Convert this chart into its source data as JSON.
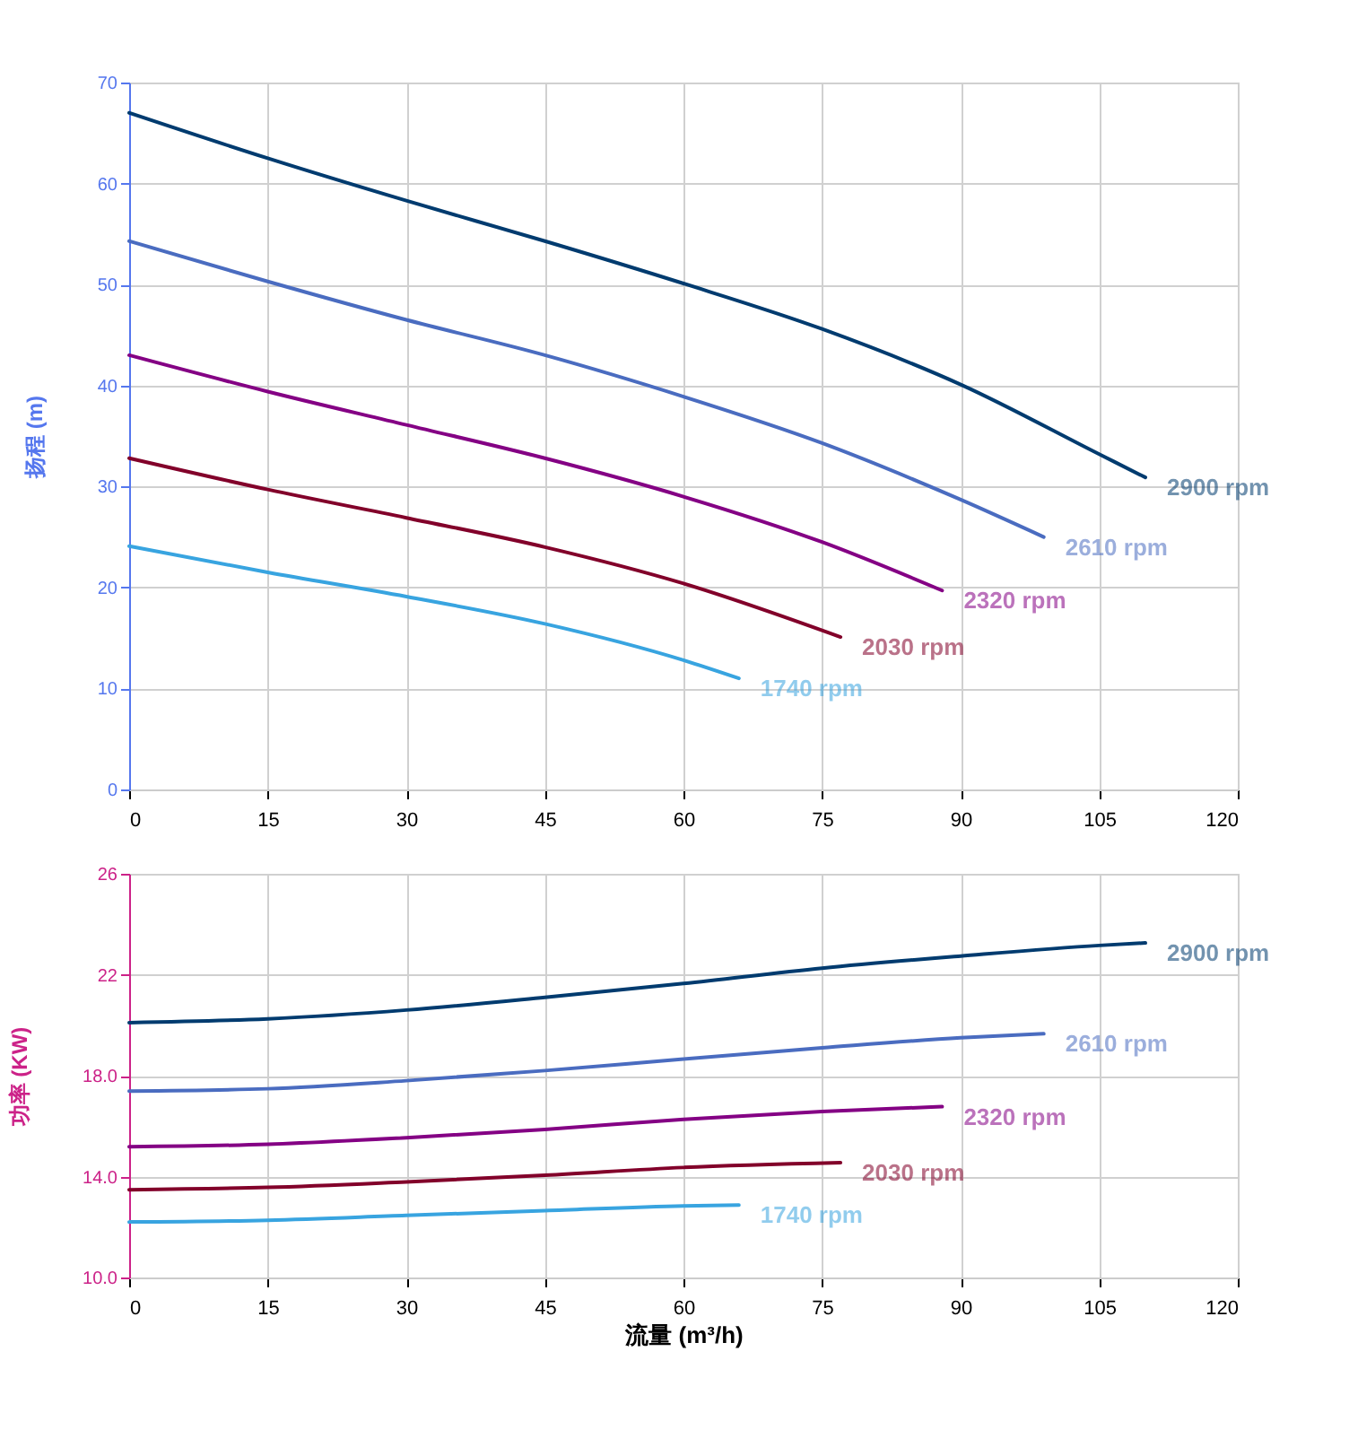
{
  "chart_data": [
    {
      "type": "line",
      "ylabel": "扬程 (m)",
      "xlim": [
        0,
        120
      ],
      "xticks": [
        0,
        15,
        30,
        45,
        60,
        75,
        90,
        105,
        120
      ],
      "ylim": [
        0,
        70
      ],
      "yticks": [
        0,
        10,
        20,
        30,
        40,
        50,
        60,
        70
      ],
      "grid": true,
      "legend": false,
      "series": [
        {
          "name": "2900 rpm",
          "color": "#003b6f",
          "x": [
            0,
            15,
            30,
            45,
            60,
            75,
            90,
            105,
            110
          ],
          "values": [
            67,
            62.5,
            58.3,
            54.3,
            50.1,
            45.6,
            40.1,
            33.2,
            30.9
          ]
        },
        {
          "name": "2610 rpm",
          "color": "#4a6cc0",
          "x": [
            0,
            15,
            30,
            45,
            60,
            75,
            90,
            99
          ],
          "values": [
            54.3,
            50.3,
            46.5,
            43,
            38.9,
            34.3,
            28.7,
            25
          ]
        },
        {
          "name": "2320 rpm",
          "color": "#840084",
          "x": [
            0,
            15,
            30,
            45,
            60,
            75,
            88
          ],
          "values": [
            43,
            39.4,
            36.1,
            32.8,
            29,
            24.5,
            19.7
          ]
        },
        {
          "name": "2030 rpm",
          "color": "#82002a",
          "x": [
            0,
            15,
            30,
            45,
            60,
            77
          ],
          "values": [
            32.8,
            29.7,
            26.9,
            24,
            20.4,
            15.1
          ]
        },
        {
          "name": "1740 rpm",
          "color": "#38a4e0",
          "x": [
            0,
            15,
            30,
            45,
            60,
            66
          ],
          "values": [
            24.1,
            21.5,
            19.1,
            16.4,
            12.8,
            11
          ]
        }
      ]
    },
    {
      "type": "line",
      "ylabel": "功率 (KW)",
      "xlabel": "流量 (m³/h)",
      "xlim": [
        0,
        120
      ],
      "xticks": [
        0,
        15,
        30,
        45,
        60,
        75,
        90,
        105,
        120
      ],
      "ylim": [
        10,
        26
      ],
      "yticks": [
        {
          "value": 10,
          "label": "10.0"
        },
        {
          "value": 14,
          "label": "14.0"
        },
        {
          "value": 18,
          "label": "18.0"
        },
        22,
        26
      ],
      "grid": true,
      "legend": false,
      "series": [
        {
          "name": "2900 rpm",
          "color": "#003b6f",
          "x": [
            0,
            15,
            30,
            45,
            60,
            75,
            90,
            105,
            110
          ],
          "values": [
            20.1,
            20.25,
            20.6,
            21.1,
            21.65,
            22.26,
            22.74,
            23.16,
            23.26
          ]
        },
        {
          "name": "2610 rpm",
          "color": "#4a6cc0",
          "x": [
            0,
            15,
            30,
            45,
            60,
            75,
            90,
            99
          ],
          "values": [
            17.39,
            17.48,
            17.8,
            18.2,
            18.66,
            19.1,
            19.5,
            19.66
          ]
        },
        {
          "name": "2320 rpm",
          "color": "#840084",
          "x": [
            0,
            15,
            30,
            45,
            60,
            75,
            88
          ],
          "values": [
            15.18,
            15.28,
            15.54,
            15.87,
            16.27,
            16.58,
            16.77
          ]
        },
        {
          "name": "2030 rpm",
          "color": "#82002a",
          "x": [
            0,
            15,
            30,
            45,
            60,
            77
          ],
          "values": [
            13.48,
            13.57,
            13.79,
            14.05,
            14.36,
            14.55
          ]
        },
        {
          "name": "1740 rpm",
          "color": "#38a4e0",
          "x": [
            0,
            15,
            30,
            45,
            60,
            66
          ],
          "values": [
            12.2,
            12.27,
            12.46,
            12.65,
            12.84,
            12.87
          ]
        }
      ]
    }
  ]
}
